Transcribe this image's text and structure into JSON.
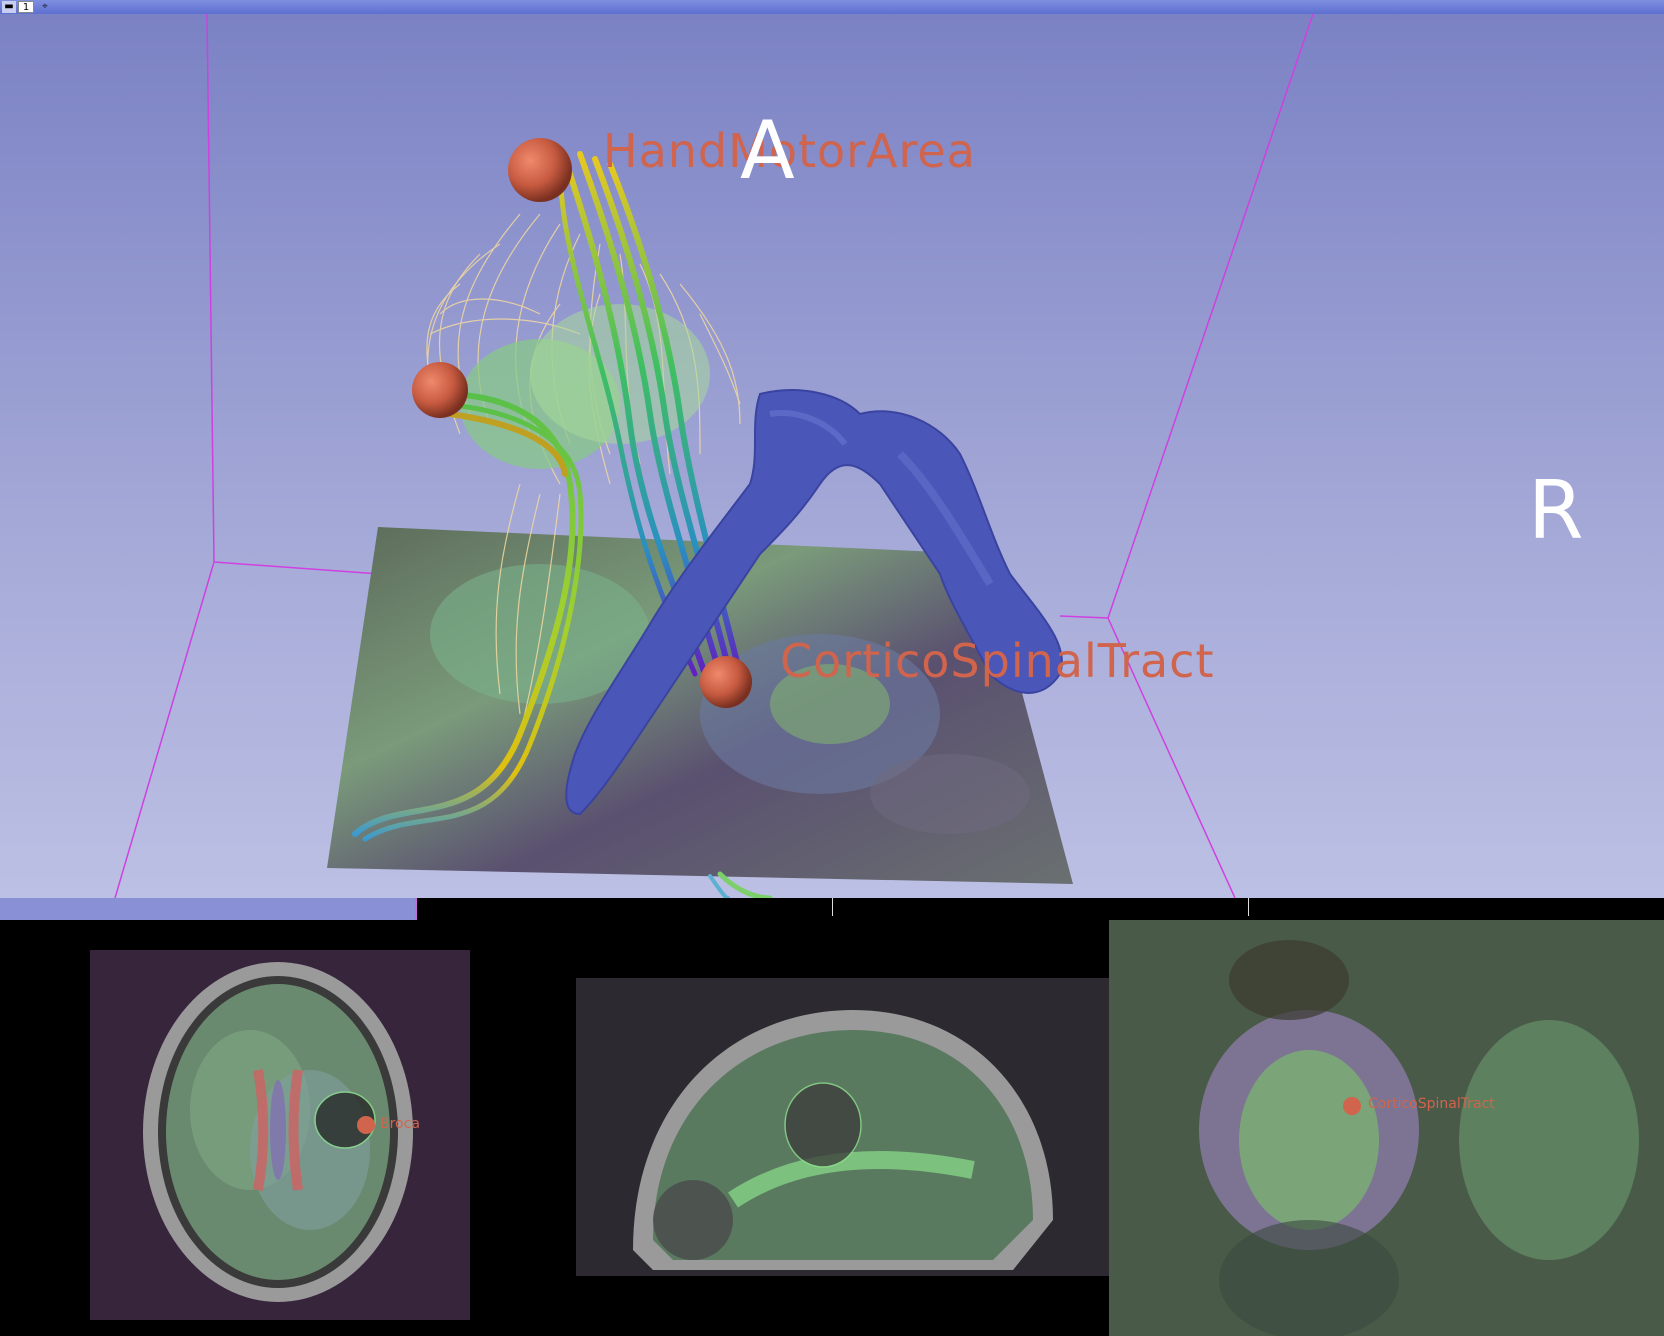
{
  "toolbar": {
    "pin_icon": "pin-icon",
    "layout_number": "1",
    "link_icon": "crosshair-link-icon"
  },
  "view3d": {
    "orientation_markers": {
      "anterior": "A",
      "right": "R"
    },
    "fiducials": [
      {
        "label": "HandMotorArea"
      },
      {
        "label": "CorticoSpinalTract"
      }
    ],
    "colors": {
      "background_top": "#7b82c4",
      "background_bottom": "#bcc0e4",
      "fiducial": "#d0644c",
      "bounding_box": "#d040e0",
      "ventricle_model": "#4a56b8",
      "fiber_bundle": "#f2d9a0"
    }
  },
  "slice_views": {
    "red": {
      "fiducial_label": "Broca"
    },
    "yellow": {
      "fiducial_label": ""
    },
    "green": {
      "fiducial_label": "CorticoSpinalTract"
    }
  }
}
